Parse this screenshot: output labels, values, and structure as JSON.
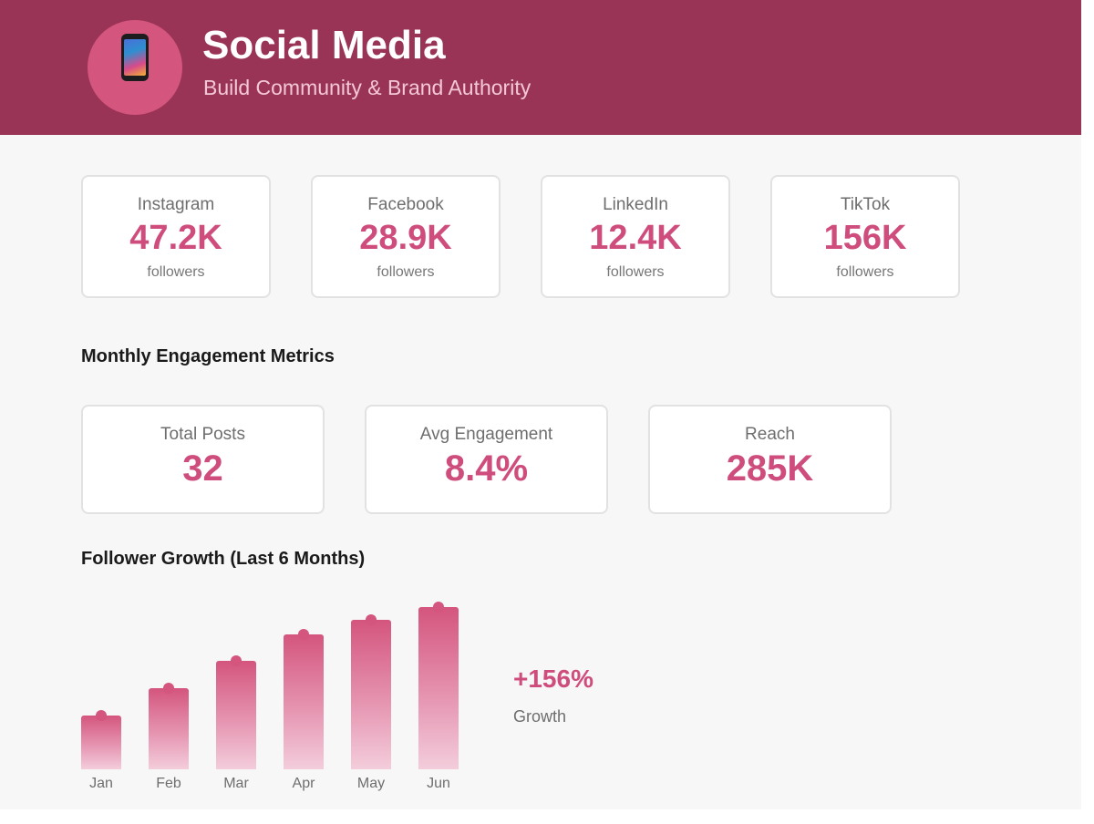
{
  "header": {
    "icon": "mobile-phone-icon",
    "title": "Social Media",
    "subtitle": "Build Community & Brand Authority"
  },
  "platforms": [
    {
      "name": "Instagram",
      "followers": "47.2K",
      "unit": "followers"
    },
    {
      "name": "Facebook",
      "followers": "28.9K",
      "unit": "followers"
    },
    {
      "name": "LinkedIn",
      "followers": "12.4K",
      "unit": "followers"
    },
    {
      "name": "TikTok",
      "followers": "156K",
      "unit": "followers"
    }
  ],
  "engagement": {
    "title": "Monthly Engagement Metrics",
    "metrics": [
      {
        "label": "Total Posts",
        "value": "32"
      },
      {
        "label": "Avg Engagement",
        "value": "8.4%"
      },
      {
        "label": "Reach",
        "value": "285K"
      }
    ]
  },
  "growth": {
    "title": "Follower Growth (Last 6 Months)",
    "value": "+156%",
    "label": "Growth"
  },
  "chart_data": {
    "type": "bar",
    "title": "Follower Growth (Last 6 Months)",
    "categories": [
      "Jan",
      "Feb",
      "Mar",
      "Apr",
      "May",
      "Jun"
    ],
    "values": [
      33,
      50,
      67,
      83,
      92,
      100
    ],
    "ylim": [
      0,
      100
    ],
    "grid": false,
    "colors": {
      "bar": "#d4557e",
      "bar_fade": "#f3cddb"
    }
  },
  "colors": {
    "header": "#9a3456",
    "accent": "#cf4d7c",
    "icon_circle": "#d4557e",
    "background": "#f7f7f7"
  }
}
